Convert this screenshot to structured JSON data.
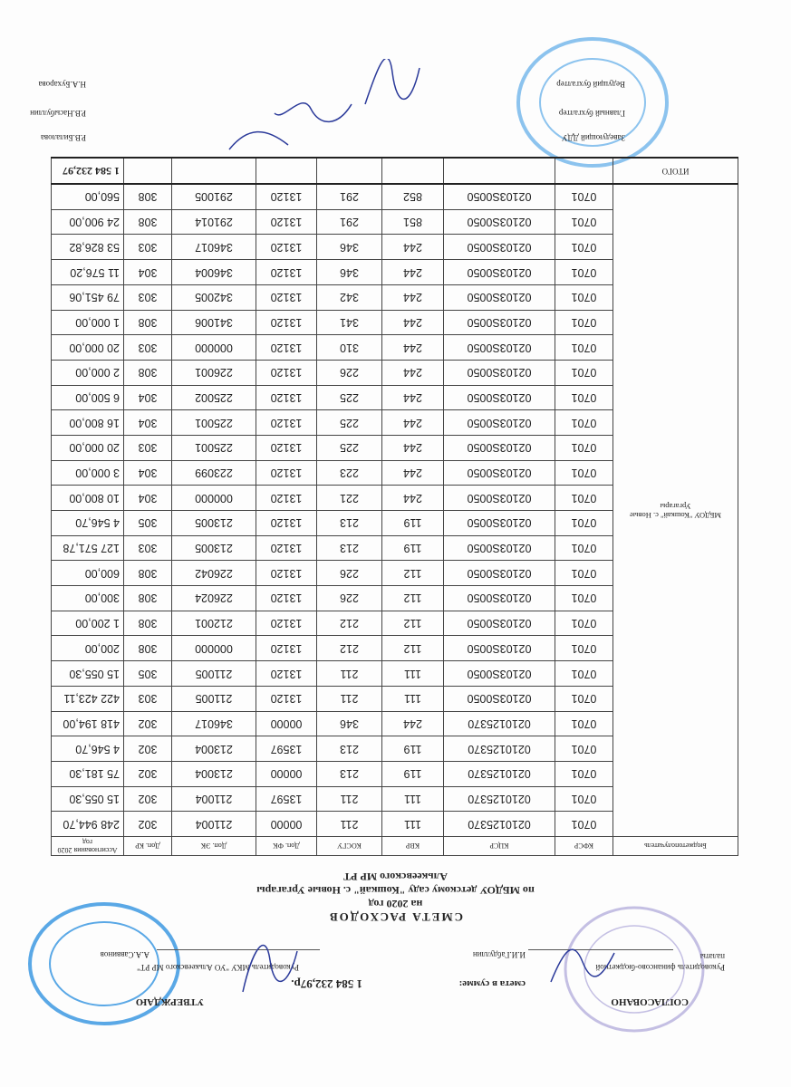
{
  "header": {
    "agreed_label": "СОГЛАСОВАНО",
    "approved_label": "УТВЕРЖДАЮ",
    "sum_label": "смета в сумме:",
    "sum_value": "1 584 232,97р.",
    "left_position": "Руководитель финансово-бюджетной",
    "left_position_2": "палаты",
    "left_name": "И.И.Габдуллин",
    "right_position": "Руководитель МКУ \"УО Алькеевского МР РТ\"",
    "right_name": "А.А.Саввинов"
  },
  "title": {
    "line1": "СМЕТА  РАСХОДОВ",
    "line2": "на 2020 год",
    "line3": "по МБДОУ детскому саду \"Кошкай\" с. Новые Ургагары",
    "line4": "Алькеевского МР РТ"
  },
  "table": {
    "columns": [
      "Бюджетополучатель",
      "КФСР",
      "КЦСР",
      "КВР",
      "КОСГУ",
      "Доп. ФК",
      "Доп. ЭК",
      "Доп. КР",
      "Ассигнования 2020 год"
    ],
    "recipient": "МБДОУ \"Кошкай\" с. Новые Ургагары",
    "rows": [
      [
        "0701",
        "0210125370",
        "111",
        "211",
        "00000",
        "211004",
        "302",
        "248 944,70"
      ],
      [
        "0701",
        "0210125370",
        "111",
        "211",
        "13597",
        "211004",
        "302",
        "15 055,30"
      ],
      [
        "0701",
        "0210125370",
        "119",
        "213",
        "00000",
        "213004",
        "302",
        "75 181,30"
      ],
      [
        "0701",
        "0210125370",
        "119",
        "213",
        "13597",
        "213004",
        "302",
        "4 546,70"
      ],
      [
        "0701",
        "0210125370",
        "244",
        "346",
        "00000",
        "346017",
        "302",
        "418 194,00"
      ],
      [
        "0701",
        "02103S0050",
        "111",
        "211",
        "13120",
        "211005",
        "303",
        "422 423,11"
      ],
      [
        "0701",
        "02103S0050",
        "111",
        "211",
        "13120",
        "211005",
        "305",
        "15 055,30"
      ],
      [
        "0701",
        "02103S0050",
        "112",
        "212",
        "13120",
        "000000",
        "308",
        "200,00"
      ],
      [
        "0701",
        "02103S0050",
        "112",
        "212",
        "13120",
        "212001",
        "308",
        "1 200,00"
      ],
      [
        "0701",
        "02103S0050",
        "112",
        "226",
        "13120",
        "226024",
        "308",
        "300,00"
      ],
      [
        "0701",
        "02103S0050",
        "112",
        "226",
        "13120",
        "226042",
        "308",
        "600,00"
      ],
      [
        "0701",
        "02103S0050",
        "119",
        "213",
        "13120",
        "213005",
        "303",
        "127 571,78"
      ],
      [
        "0701",
        "02103S0050",
        "119",
        "213",
        "13120",
        "213005",
        "305",
        "4 546,70"
      ],
      [
        "0701",
        "02103S0050",
        "244",
        "221",
        "13120",
        "000000",
        "304",
        "10 800,00"
      ],
      [
        "0701",
        "02103S0050",
        "244",
        "223",
        "13120",
        "223099",
        "304",
        "3 000,00"
      ],
      [
        "0701",
        "02103S0050",
        "244",
        "225",
        "13120",
        "225001",
        "303",
        "20 000,00"
      ],
      [
        "0701",
        "02103S0050",
        "244",
        "225",
        "13120",
        "225001",
        "304",
        "16 800,00"
      ],
      [
        "0701",
        "02103S0050",
        "244",
        "225",
        "13120",
        "225002",
        "304",
        "6 500,00"
      ],
      [
        "0701",
        "02103S0050",
        "244",
        "226",
        "13120",
        "226001",
        "308",
        "2 000,00"
      ],
      [
        "0701",
        "02103S0050",
        "244",
        "310",
        "13120",
        "000000",
        "303",
        "20 000,00"
      ],
      [
        "0701",
        "02103S0050",
        "244",
        "341",
        "13120",
        "341006",
        "308",
        "1 000,00"
      ],
      [
        "0701",
        "02103S0050",
        "244",
        "342",
        "13120",
        "342005",
        "303",
        "79 451,06"
      ],
      [
        "0701",
        "02103S0050",
        "244",
        "346",
        "13120",
        "346004",
        "304",
        "11 576,20"
      ],
      [
        "0701",
        "02103S0050",
        "244",
        "346",
        "13120",
        "346017",
        "303",
        "53 826,82"
      ],
      [
        "0701",
        "02103S0050",
        "851",
        "291",
        "13120",
        "291014",
        "308",
        "24 900,00"
      ],
      [
        "0701",
        "02103S0050",
        "852",
        "291",
        "13120",
        "291005",
        "308",
        "560,00"
      ]
    ],
    "total_label": "ИТОГО",
    "total_value": "1 584 232,97"
  },
  "signatures": [
    {
      "position": "Заведующий ДДУ",
      "name": "Р.В.Билалова"
    },
    {
      "position": "Главный бухгалтер",
      "name": "Р.В.Насыбуллин"
    },
    {
      "position": "Ведущий бухгалтер",
      "name": "Н.А.Бухарова"
    }
  ],
  "colors": {
    "stamp_blue": "#4a9ee0",
    "stamp_purple": "#b9b4dc",
    "signature_ink": "#2b3a9a"
  },
  "orientation": "rotated 180 degrees"
}
